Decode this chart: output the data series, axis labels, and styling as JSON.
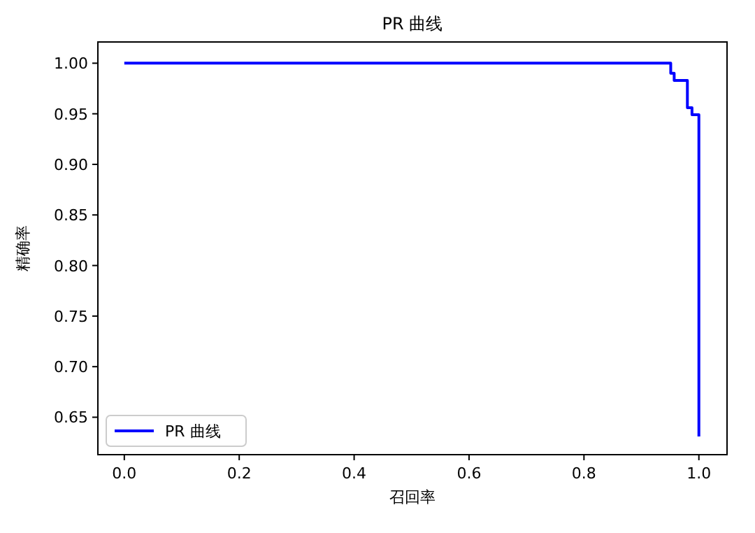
{
  "chart_data": {
    "type": "step",
    "title": "PR 曲线",
    "xlabel": "召回率",
    "ylabel": "精确率",
    "x": [
      0,
      0.951,
      0.957,
      0.98,
      0.988,
      1.0
    ],
    "series": [
      {
        "name": "PR 曲线",
        "color": "#0000ff",
        "values": [
          1.0,
          0.99,
          0.983,
          0.956,
          0.949,
          0.631
        ]
      }
    ],
    "xlim": [
      -0.046,
      1.049
    ],
    "ylim": [
      0.613,
      1.021
    ],
    "xticks": [
      {
        "value": 0,
        "label": "0.0"
      },
      0.2,
      0.4,
      0.6,
      0.8,
      {
        "value": 1,
        "label": "1.0"
      }
    ],
    "yticks": [
      0.65,
      {
        "value": 0.7,
        "label": "0.70"
      },
      0.75,
      {
        "value": 0.8,
        "label": "0.80"
      },
      0.85,
      {
        "value": 0.9,
        "label": "0.90"
      },
      0.95,
      {
        "value": 1,
        "label": "1.00"
      }
    ],
    "legend": "bottom left",
    "grid": false,
    "line_style": "solid"
  }
}
